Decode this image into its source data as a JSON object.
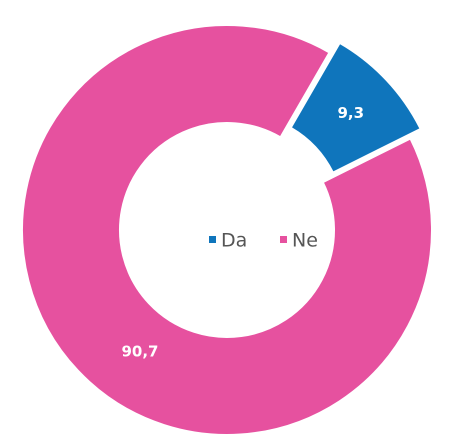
{
  "chart_data": {
    "type": "donut",
    "categories": [
      "Da",
      "Ne"
    ],
    "values": [
      9.3,
      90.7
    ],
    "value_labels": [
      "9,3",
      "90,7"
    ],
    "colors": [
      "#0f75bc",
      "#e6519f"
    ],
    "legend": "center"
  }
}
